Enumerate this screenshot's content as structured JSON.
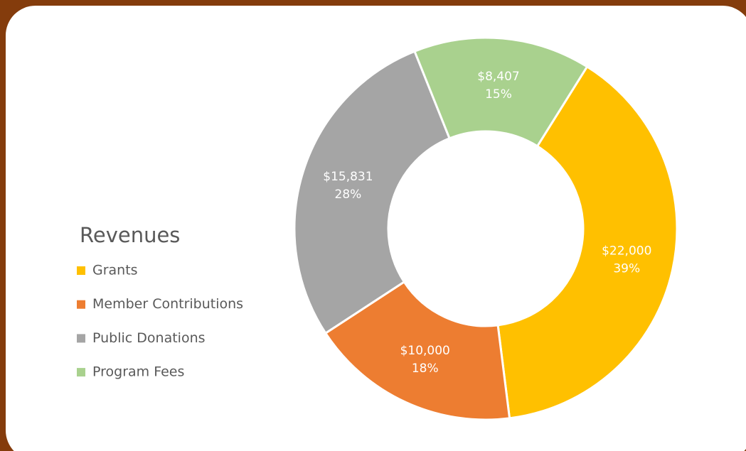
{
  "chart_data": {
    "type": "donut",
    "legend_title": "Revenues",
    "categories": [
      "Grants",
      "Member Contributions",
      "Public Donations",
      "Program Fees"
    ],
    "values": [
      22000,
      10000,
      15831,
      8407
    ],
    "value_labels": [
      "$22,000",
      "$10,000",
      "$15,831",
      "$8,407"
    ],
    "percent_labels": [
      "39%",
      "18%",
      "28%",
      "15%"
    ],
    "colors": [
      "#ffc000",
      "#ed7d31",
      "#a5a5a5",
      "#a9d18e"
    ],
    "legend_position": "left"
  }
}
